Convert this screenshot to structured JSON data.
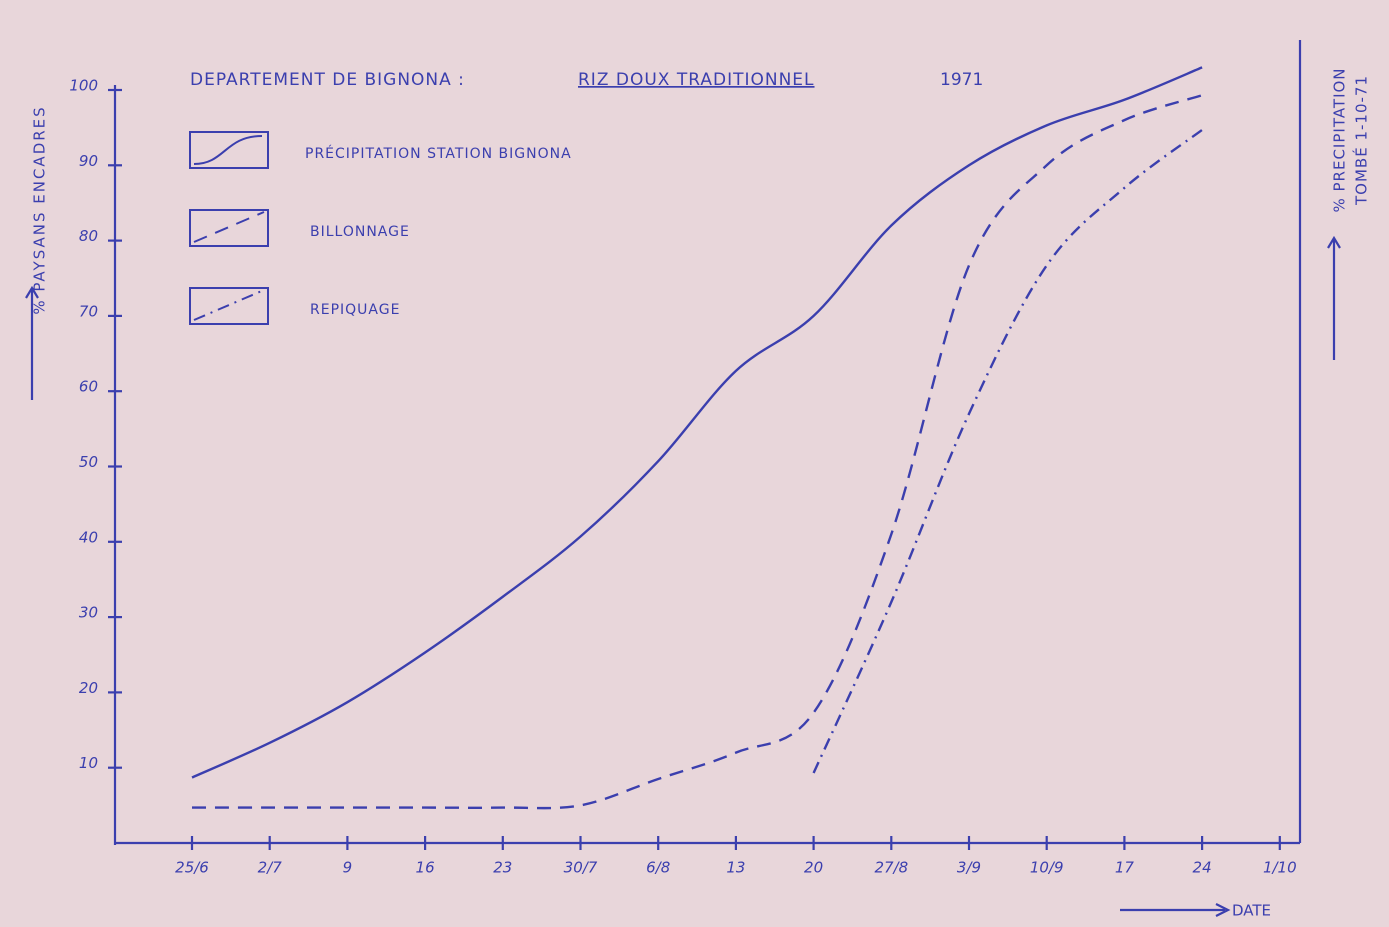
{
  "chart_data": {
    "type": "line",
    "title": "DEPARTEMENT DE BIGNONA :",
    "subtitle": "RIZ DOUX TRADITIONNEL",
    "year": "1971",
    "y_label": "% PAYSANS ENCADRES",
    "y2_label": [
      "% PRECIPITATION",
      "TOMBÉ 1-10-71"
    ],
    "x_label": "DATE",
    "categories": [
      "25/6",
      "2/7",
      "9",
      "16",
      "23",
      "30/7",
      "6/8",
      "13",
      "20",
      "27/8",
      "3/9",
      "10/9",
      "17",
      "24",
      "1/10"
    ],
    "ylim": [
      0,
      105
    ],
    "yticks": [
      10,
      20,
      30,
      40,
      50,
      60,
      70,
      80,
      90,
      100
    ],
    "series": [
      {
        "name": "PRÉCIPITATION STATION BIGNONA",
        "color": "#3b3fae",
        "dash": "solid",
        "values": [
          8.7,
          13.3,
          18.7,
          25.3,
          32.7,
          40.7,
          50.7,
          62.7,
          70,
          82,
          90,
          95.3,
          98.7,
          103,
          null
        ]
      },
      {
        "name": "BILLONNAGE",
        "color": "#3b3fae",
        "dash": "dashed",
        "values": [
          4.7,
          4.7,
          4.7,
          4.7,
          4.7,
          5,
          8.5,
          12,
          17.3,
          41,
          76.7,
          90,
          96,
          99.3,
          null
        ]
      },
      {
        "name": "REPIQUAGE",
        "color": "#3b3fae",
        "dash": "dashdot",
        "values": [
          null,
          null,
          null,
          null,
          null,
          null,
          null,
          null,
          9.3,
          32,
          57,
          76.7,
          87,
          94.7,
          null
        ]
      }
    ]
  }
}
